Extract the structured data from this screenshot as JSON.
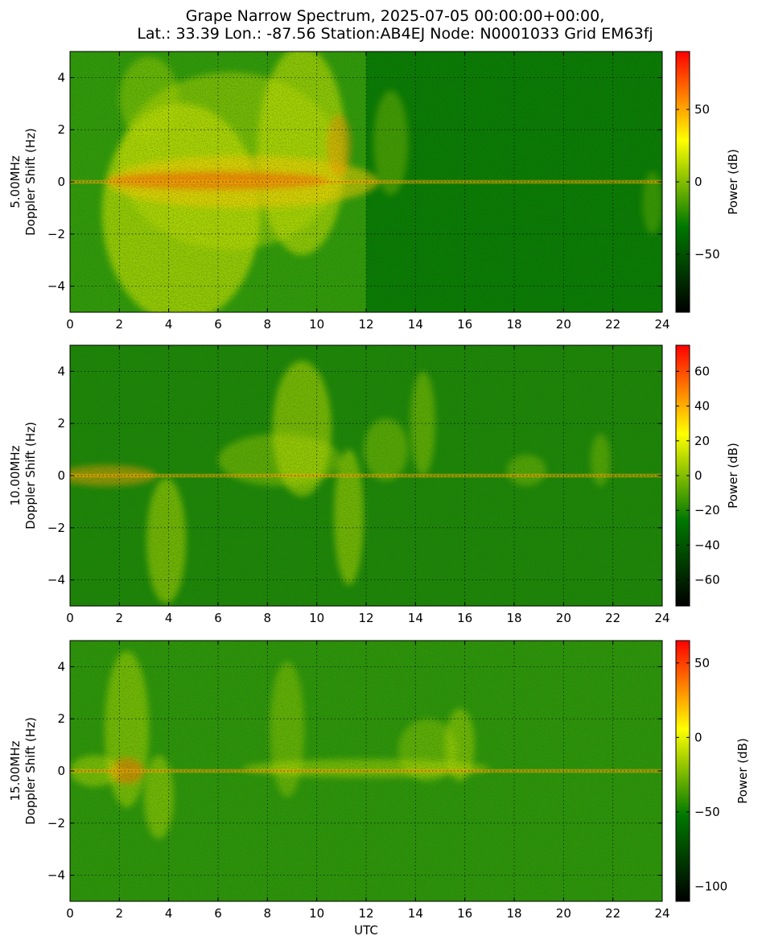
{
  "title_lines": [
    "Grape Narrow Spectrum, 2025-07-05 00:00:00+00:00,",
    "Lat.: 33.39 Lon.: -87.56 Station:AB4EJ Node: N0001033 Grid EM63fj"
  ],
  "colors": {
    "colormap": [
      "#000000",
      "#007800",
      "#ffff00",
      "#ff0000"
    ],
    "grid": "#000000"
  },
  "chart_data": [
    {
      "type": "heatmap",
      "frequency_label": "5.00MHz",
      "ylabel": "Doppler Shift (Hz)",
      "xlabel": "",
      "xlim": [
        0,
        24
      ],
      "ylim": [
        -5,
        5
      ],
      "x_ticks": [
        "0",
        "2",
        "4",
        "6",
        "8",
        "10",
        "12",
        "14",
        "16",
        "18",
        "20",
        "22",
        "24"
      ],
      "y_ticks": [
        "4",
        "2",
        "0",
        "−2",
        "−4"
      ],
      "grid": true,
      "colorbar": {
        "label": "Power (dB)",
        "range": [
          -90,
          90
        ],
        "ticks": [
          {
            "value": 50,
            "label": "50"
          },
          {
            "value": 0,
            "label": "0"
          },
          {
            "value": -50,
            "label": "−50"
          }
        ]
      }
    },
    {
      "type": "heatmap",
      "frequency_label": "10.00MHz",
      "ylabel": "Doppler Shift (Hz)",
      "xlabel": "",
      "xlim": [
        0,
        24
      ],
      "ylim": [
        -5,
        5
      ],
      "x_ticks": [
        "0",
        "2",
        "4",
        "6",
        "8",
        "10",
        "12",
        "14",
        "16",
        "18",
        "20",
        "22",
        "24"
      ],
      "y_ticks": [
        "4",
        "2",
        "0",
        "−2",
        "−4"
      ],
      "grid": true,
      "colorbar": {
        "label": "Power (dB)",
        "range": [
          -75,
          75
        ],
        "ticks": [
          {
            "value": 60,
            "label": "60"
          },
          {
            "value": 40,
            "label": "40"
          },
          {
            "value": 20,
            "label": "20"
          },
          {
            "value": 0,
            "label": "0"
          },
          {
            "value": -20,
            "label": "−20"
          },
          {
            "value": -40,
            "label": "−40"
          },
          {
            "value": -60,
            "label": "−60"
          }
        ]
      }
    },
    {
      "type": "heatmap",
      "frequency_label": "15.00MHz",
      "ylabel": "Doppler Shift (Hz)",
      "xlabel": "UTC",
      "xlim": [
        0,
        24
      ],
      "ylim": [
        -5,
        5
      ],
      "x_ticks": [
        "0",
        "2",
        "4",
        "6",
        "8",
        "10",
        "12",
        "14",
        "16",
        "18",
        "20",
        "22",
        "24"
      ],
      "y_ticks": [
        "4",
        "2",
        "0",
        "−2",
        "−4"
      ],
      "grid": true,
      "colorbar": {
        "label": "Power (dB)",
        "range": [
          -110,
          65
        ],
        "ticks": [
          {
            "value": 50,
            "label": "50"
          },
          {
            "value": 0,
            "label": "0"
          },
          {
            "value": -50,
            "label": "−50"
          },
          {
            "value": -100,
            "label": "−100"
          }
        ]
      }
    }
  ]
}
